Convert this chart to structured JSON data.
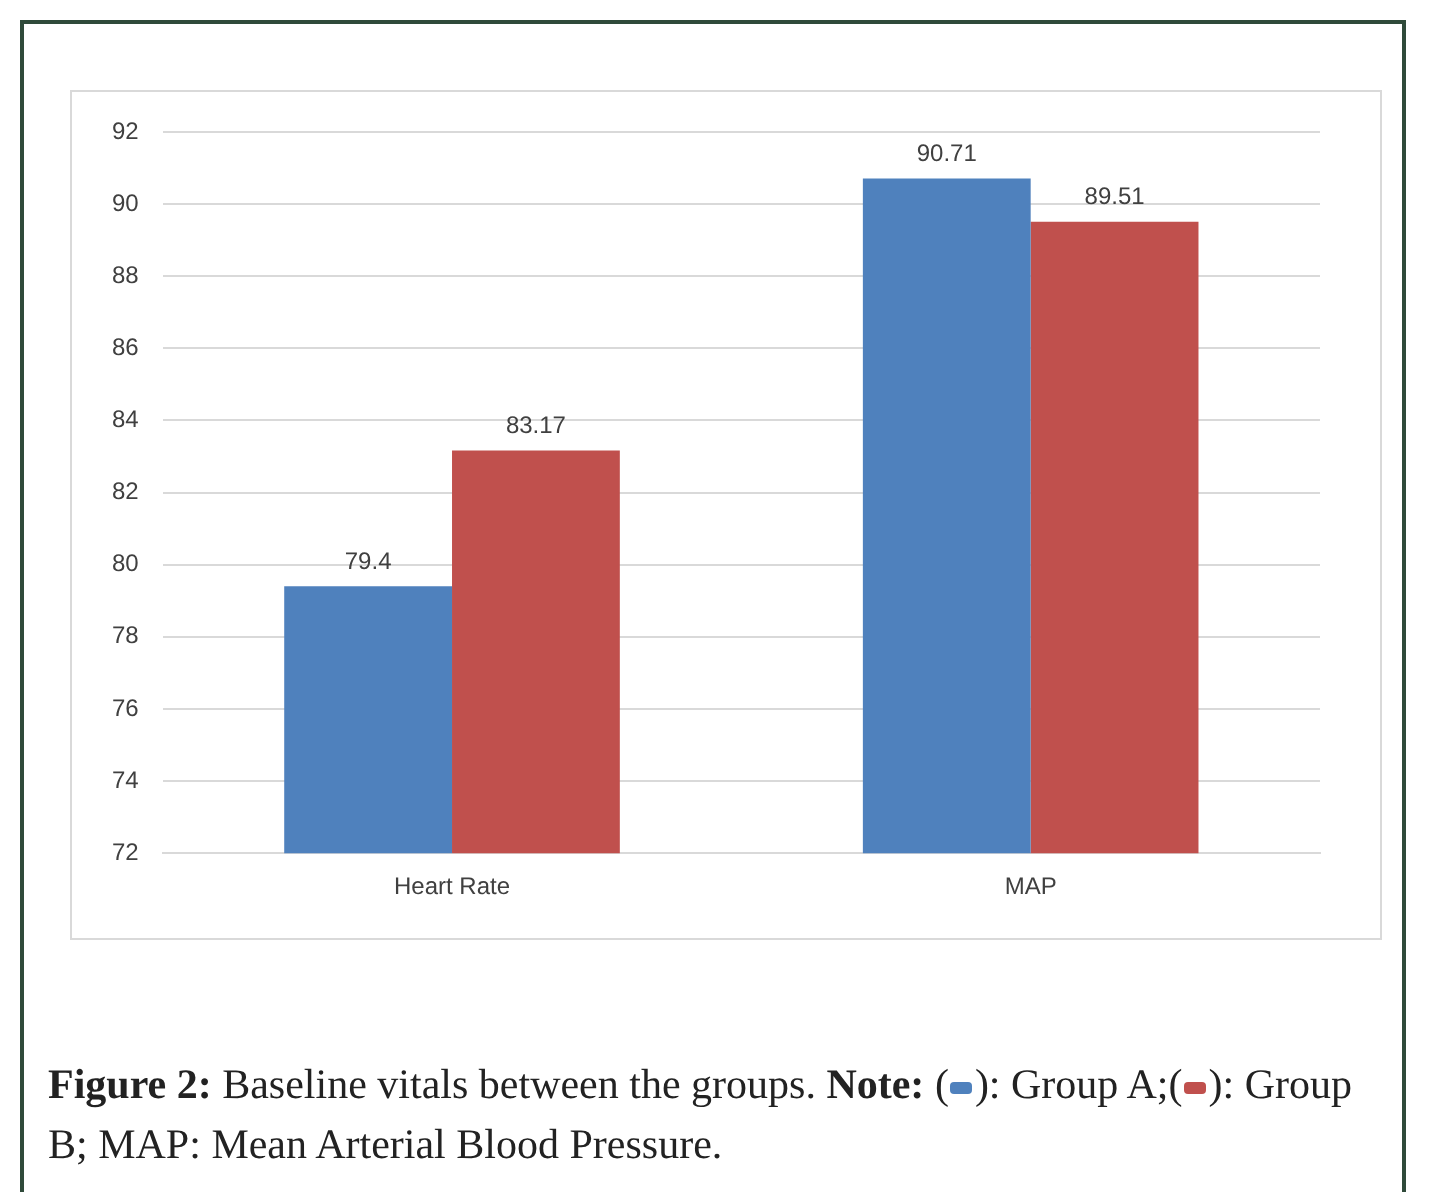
{
  "chart_data": {
    "type": "bar",
    "categories": [
      "Heart Rate",
      "MAP"
    ],
    "series": [
      {
        "color": "#4f81bd",
        "values": [
          79.4,
          90.71
        ]
      },
      {
        "color": "#c0504d",
        "values": [
          83.17,
          89.51
        ]
      }
    ],
    "ylim": [
      72,
      92
    ],
    "yticks": [
      72,
      74,
      76,
      78,
      80,
      82,
      84,
      86,
      88,
      90,
      92
    ],
    "grid": "y",
    "data_labels": true,
    "annotations": [
      "Figure 2:",
      "Baseline vitals between the groups.",
      "Note:",
      "(",
      "): Group A;(",
      "): Group B; MAP: Mean Arterial Blood Pressure."
    ]
  }
}
